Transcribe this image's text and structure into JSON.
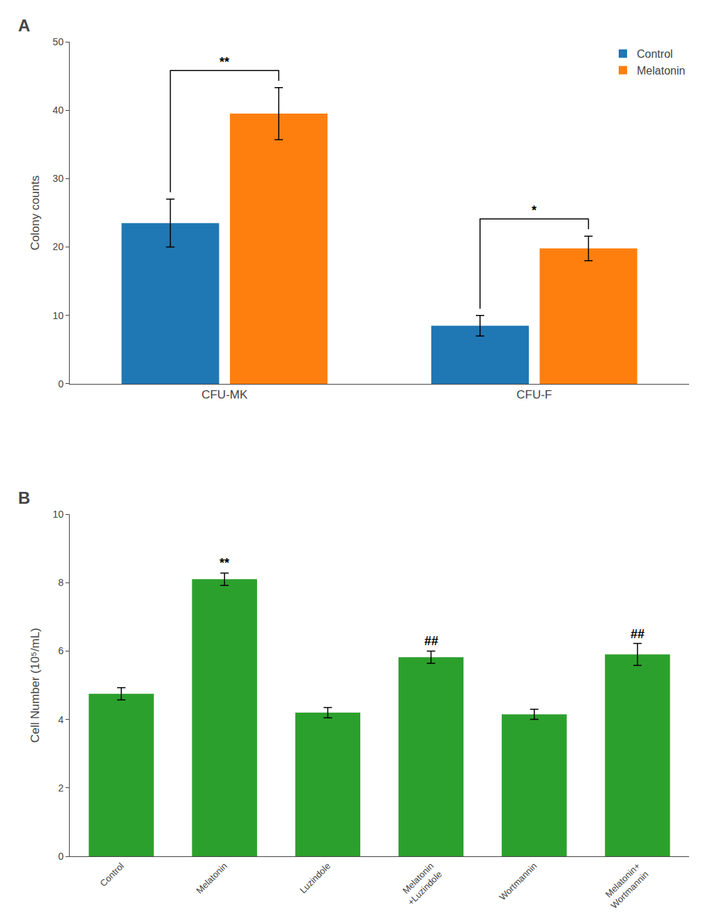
{
  "chart_data": [
    {
      "type": "bar",
      "title": "A",
      "categories": [
        "CFU-MK",
        "CFU-F"
      ],
      "series": [
        {
          "name": "Control",
          "values": [
            23.5,
            8.5
          ],
          "errors": [
            3.5,
            1.5
          ]
        },
        {
          "name": "Melatonin",
          "values": [
            39.5,
            19.8
          ],
          "errors": [
            3.8,
            1.8
          ]
        }
      ],
      "ylabel": "Colony counts",
      "ylim": [
        0,
        50
      ],
      "yticks": [
        0,
        10,
        20,
        30,
        40,
        50
      ],
      "grid": false,
      "legend": "upper right",
      "annotations": [
        {
          "text": "**",
          "category": "CFU-MK"
        },
        {
          "text": "*",
          "category": "CFU-F"
        }
      ]
    },
    {
      "type": "bar",
      "title": "B",
      "categories": [
        "Control",
        "Melatonin",
        "Luzindole",
        "Melatonin\n+Luzindole",
        "Wortmannin",
        "Melatonin+\nWortmannin"
      ],
      "values": [
        4.75,
        8.1,
        4.2,
        5.82,
        4.15,
        5.9
      ],
      "errors": [
        0.18,
        0.18,
        0.15,
        0.18,
        0.15,
        0.32
      ],
      "ylabel": "Cell Number (10⁵/mL)",
      "ylim": [
        0,
        10
      ],
      "yticks": [
        0,
        2,
        4,
        6,
        8,
        10
      ],
      "grid": false,
      "annotations": [
        {
          "text": "**",
          "category": "Melatonin"
        },
        {
          "text": "##",
          "category": "Melatonin\n+Luzindole"
        },
        {
          "text": "##",
          "category": "Melatonin+\nWortmannin"
        }
      ]
    }
  ]
}
